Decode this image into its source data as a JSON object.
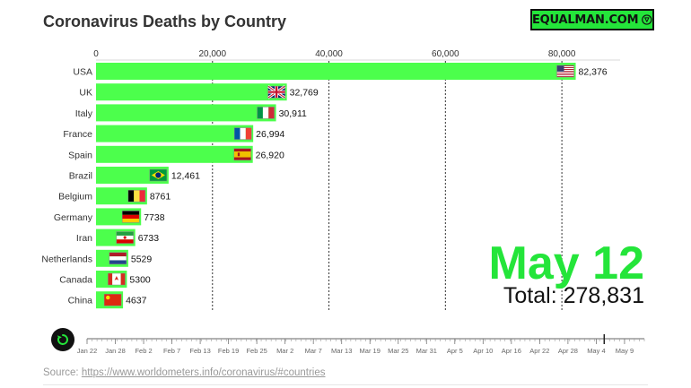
{
  "title": "Coronavirus Deaths by Country",
  "logo": {
    "text": "EQUALMAN.COM"
  },
  "date": "May 12",
  "total_label": "Total:",
  "total_value": "278,831",
  "source": {
    "label": "Source:",
    "url": "https://www.worldometers.info/coronavirus/#countries"
  },
  "timeline": {
    "ticks": [
      "Jan 22",
      "Jan 28",
      "Feb 2",
      "Feb 7",
      "Feb 13",
      "Feb 19",
      "Feb 25",
      "Mar 2",
      "Mar 7",
      "Mar 13",
      "Mar 19",
      "Mar 25",
      "Mar 31",
      "Apr 5",
      "Apr 10",
      "Apr 16",
      "Apr 22",
      "Apr 28",
      "May 4",
      "May 9"
    ],
    "progress": 0.928
  },
  "colors": {
    "bar": "#4cff4c",
    "accent": "#24e53a",
    "text": "#333333"
  },
  "chart_data": {
    "type": "bar",
    "orientation": "horizontal",
    "title": "Coronavirus Deaths by Country",
    "xlim": [
      0,
      90000
    ],
    "x_ticks": [
      0,
      20000,
      40000,
      60000,
      80000
    ],
    "x_tick_labels": [
      "0",
      "20,000",
      "40,000",
      "60,000",
      "80,000"
    ],
    "grid": "vertical dashed",
    "categories": [
      "USA",
      "UK",
      "Italy",
      "France",
      "Spain",
      "Brazil",
      "Belgium",
      "Germany",
      "Iran",
      "Netherlands",
      "Canada",
      "China"
    ],
    "values": [
      82376,
      32769,
      30911,
      26994,
      26920,
      12461,
      8761,
      7738,
      6733,
      5529,
      5300,
      4637
    ],
    "value_labels": [
      "82,376",
      "32,769",
      "30,911",
      "26,994",
      "26,920",
      "12,461",
      "8761",
      "7738",
      "6733",
      "5529",
      "5300",
      "4637"
    ],
    "flags": [
      "us-flag-icon",
      "uk-flag-icon",
      "italy-flag-icon",
      "france-flag-icon",
      "spain-flag-icon",
      "brazil-flag-icon",
      "belgium-flag-icon",
      "germany-flag-icon",
      "iran-flag-icon",
      "netherlands-flag-icon",
      "canada-flag-icon",
      "china-flag-icon"
    ]
  }
}
